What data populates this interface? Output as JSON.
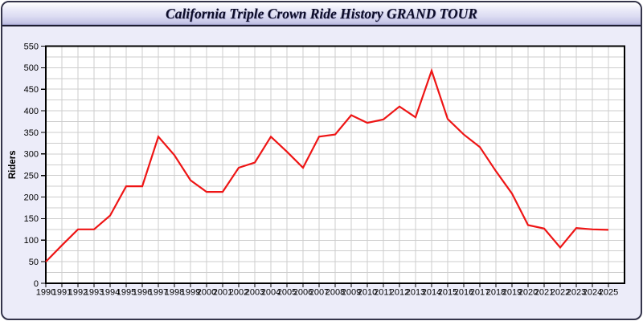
{
  "title_bar": {
    "title": "California Triple Crown Ride History GRAND TOUR"
  },
  "chart_data": {
    "type": "line",
    "title": "California Triple Crown Ride History GRAND TOUR",
    "xlabel": "",
    "ylabel": "Riders",
    "ylim": [
      0,
      550
    ],
    "y_ticks": [
      0,
      50,
      100,
      150,
      200,
      250,
      300,
      350,
      400,
      450,
      500,
      550
    ],
    "y_grid_step": 25,
    "grid": true,
    "legend": "none",
    "x": [
      1990,
      1991,
      1992,
      1993,
      1994,
      1995,
      1996,
      1997,
      1998,
      1999,
      2000,
      2001,
      2002,
      2003,
      2004,
      2005,
      2006,
      2007,
      2008,
      2009,
      2010,
      2011,
      2012,
      2013,
      2014,
      2015,
      2016,
      2017,
      2018,
      2019,
      2020,
      2021,
      2022,
      2023,
      2024,
      2025
    ],
    "series": [
      {
        "name": "Riders",
        "values": [
          50,
          88,
          125,
          125,
          157,
          225,
          225,
          340,
          297,
          239,
          212,
          212,
          268,
          280,
          340,
          305,
          268,
          340,
          345,
          390,
          372,
          380,
          410,
          385,
          493,
          381,
          345,
          316,
          260,
          208,
          135,
          127,
          83,
          128,
          125,
          124
        ]
      }
    ],
    "colors": {
      "line": "#ee1515",
      "plot_background": "#ffffff",
      "page_background": "#ececf9",
      "gridline": "#cdcdcd",
      "border": "#34344a"
    }
  }
}
